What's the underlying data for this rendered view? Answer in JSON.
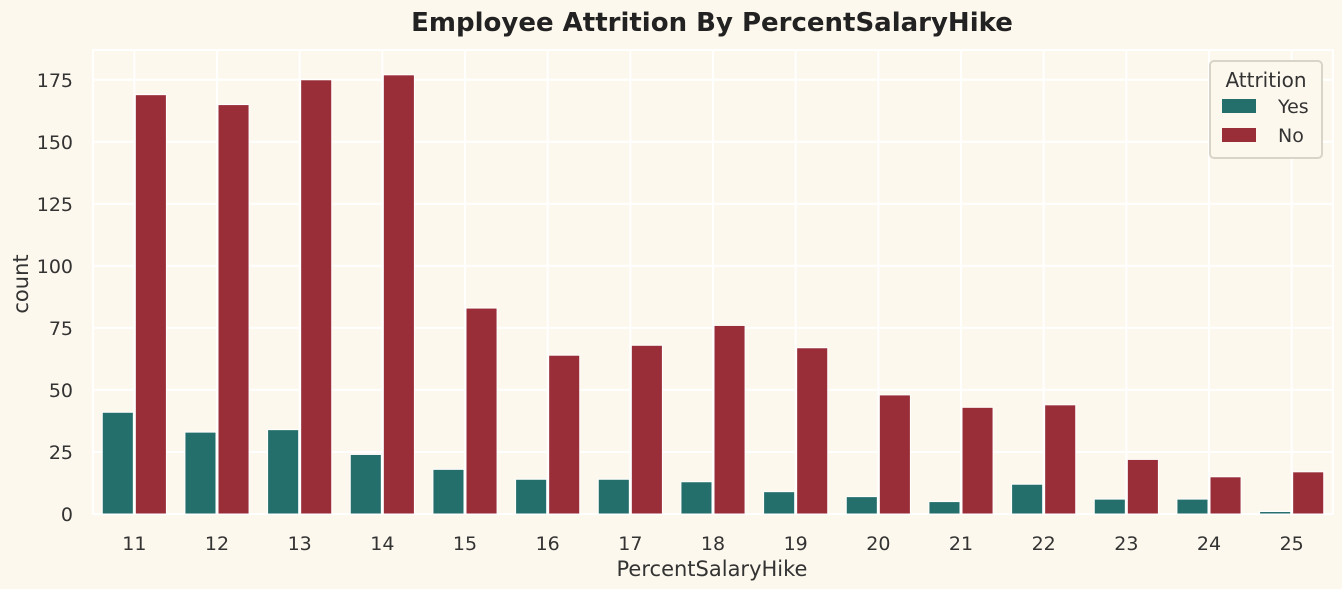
{
  "chart_data": {
    "type": "bar",
    "title": "Employee Attrition By PercentSalaryHike",
    "xlabel": "PercentSalaryHike",
    "ylabel": "count",
    "categories": [
      "11",
      "12",
      "13",
      "14",
      "15",
      "16",
      "17",
      "18",
      "19",
      "20",
      "21",
      "22",
      "23",
      "24",
      "25"
    ],
    "series": [
      {
        "name": "Yes",
        "color": "#246e6b",
        "values": [
          41,
          33,
          34,
          24,
          18,
          14,
          14,
          13,
          9,
          7,
          5,
          12,
          6,
          6,
          1
        ]
      },
      {
        "name": "No",
        "color": "#9a2e38",
        "values": [
          169,
          165,
          175,
          177,
          83,
          64,
          68,
          76,
          67,
          48,
          43,
          44,
          22,
          15,
          17
        ]
      }
    ],
    "ylim": [
      0,
      187
    ],
    "yticks": [
      "0",
      "25",
      "50",
      "75",
      "100",
      "125",
      "150",
      "175"
    ],
    "grid": true,
    "legend": {
      "title": "Attrition",
      "placement": "top-right"
    }
  }
}
